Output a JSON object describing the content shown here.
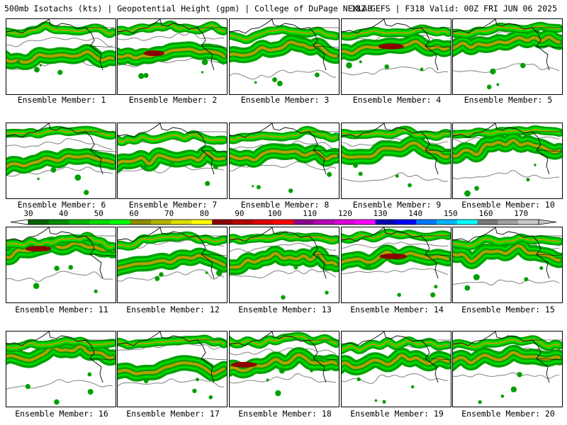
{
  "header": {
    "left_title": "500mb Isotachs (kts) | Geopotential Height (gpm) | College of DuPage NEXLAB",
    "right_title": "18Z GEFS | F318 Valid: 00Z FRI JUN 06 2025"
  },
  "colorbar": {
    "labels": [
      "30",
      "40",
      "50",
      "60",
      "70",
      "80",
      "90",
      "100",
      "110",
      "120",
      "130",
      "140",
      "150",
      "160",
      "170"
    ],
    "colors": [
      "#006400",
      "#008c00",
      "#00b400",
      "#00dc00",
      "#00ff00",
      "#8c8c00",
      "#b4b400",
      "#dcdc00",
      "#ffff00",
      "#8c0000",
      "#b40000",
      "#dc0000",
      "#ff0000",
      "#8c008c",
      "#b400b4",
      "#dc00dc",
      "#ff00ff",
      "#0000b4",
      "#0000ff",
      "#0078ff",
      "#00b4ff",
      "#00ffff",
      "#787878",
      "#a0a0a0",
      "#c8c8c8"
    ],
    "tick_color": "#000000"
  },
  "style": {
    "outline_color": "#000000",
    "contour_color": "#8c8c8c",
    "jet_low": "#00a000",
    "jet_mid": "#00dc00",
    "jet_core": "#b4a000",
    "jet_max": "#8c0000"
  },
  "members": [
    {
      "label": "Ensemble Member: 1",
      "intensity": "moderate"
    },
    {
      "label": "Ensemble Member: 2",
      "intensity": "strong"
    },
    {
      "label": "Ensemble Member: 3",
      "intensity": "moderate"
    },
    {
      "label": "Ensemble Member: 4",
      "intensity": "strong"
    },
    {
      "label": "Ensemble Member: 5",
      "intensity": "moderate"
    },
    {
      "label": "Ensemble Member: 6",
      "intensity": "moderate"
    },
    {
      "label": "Ensemble Member: 7",
      "intensity": "moderate"
    },
    {
      "label": "Ensemble Member: 8",
      "intensity": "weak"
    },
    {
      "label": "Ensemble Member: 9",
      "intensity": "moderate"
    },
    {
      "label": "Ensemble Member: 10",
      "intensity": "moderate"
    },
    {
      "label": "Ensemble Member: 11",
      "intensity": "strong"
    },
    {
      "label": "Ensemble Member: 12",
      "intensity": "moderate"
    },
    {
      "label": "Ensemble Member: 13",
      "intensity": "moderate"
    },
    {
      "label": "Ensemble Member: 14",
      "intensity": "strong"
    },
    {
      "label": "Ensemble Member: 15",
      "intensity": "weak"
    },
    {
      "label": "Ensemble Member: 16",
      "intensity": "moderate"
    },
    {
      "label": "Ensemble Member: 17",
      "intensity": "moderate"
    },
    {
      "label": "Ensemble Member: 18",
      "intensity": "strong"
    },
    {
      "label": "Ensemble Member: 19",
      "intensity": "moderate"
    },
    {
      "label": "Ensemble Member: 20",
      "intensity": "moderate"
    }
  ]
}
